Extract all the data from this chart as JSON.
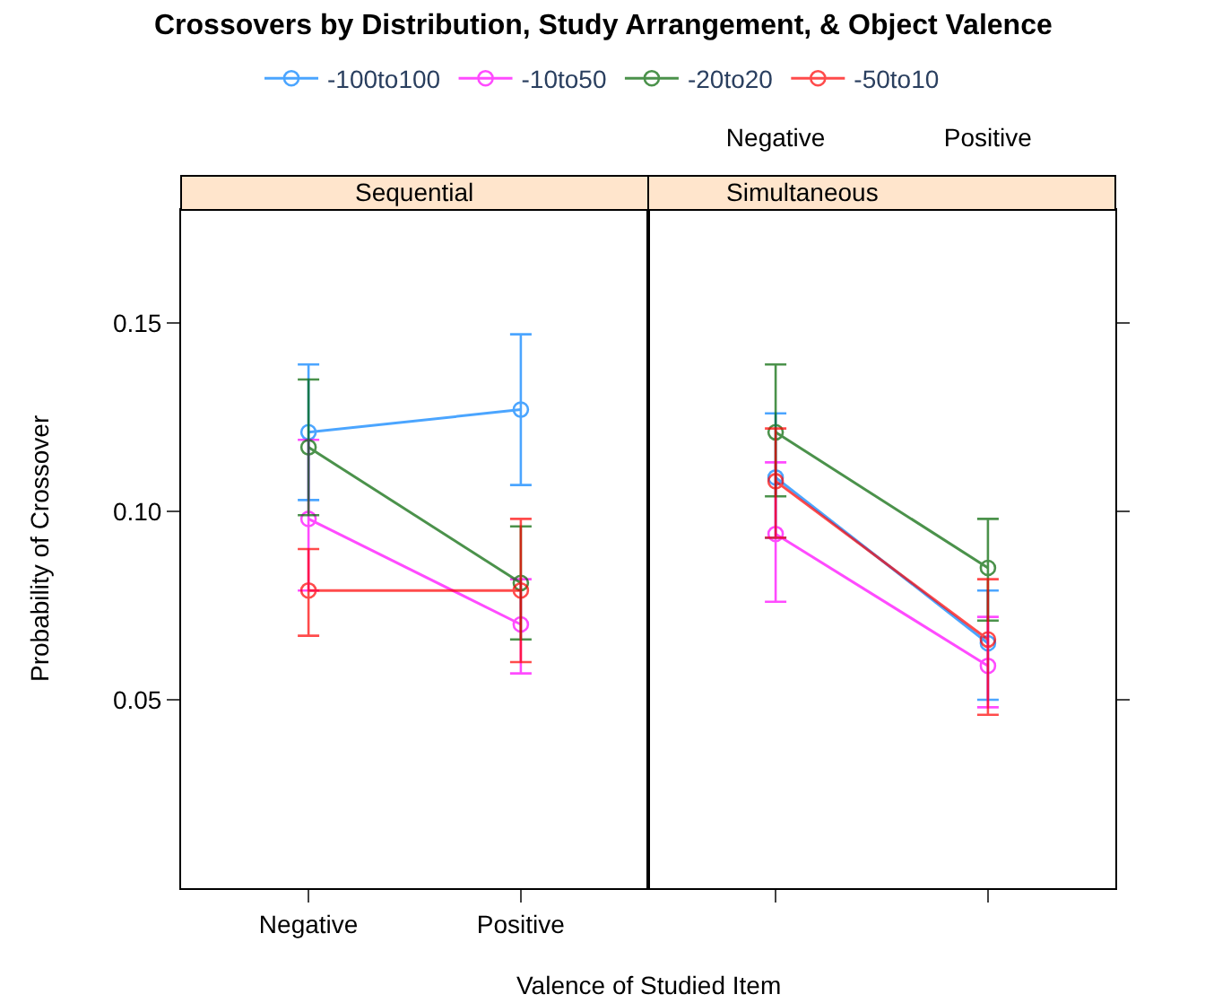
{
  "chart_data": [
    {
      "type": "line",
      "title": "Crossovers by Distribution, Study Arrangement, & Object Valence",
      "subtitle": "Sequential",
      "xlabel": "Valence of Studied Item",
      "ylabel": "Probability of Crossover",
      "categories": [
        "Negative",
        "Positive"
      ],
      "ylim": [
        0.0,
        0.18
      ],
      "yticks": [
        {
          "value": 0.05,
          "label": "0.05"
        },
        {
          "value": 0.1,
          "label": "0.10"
        },
        {
          "value": 0.15,
          "label": "0.15"
        }
      ],
      "marker": "circle",
      "legend": "top",
      "grid": false,
      "series": [
        {
          "name": "-100to100",
          "color": "#0080ff",
          "values": [
            0.121,
            0.127
          ],
          "errors": [
            [
              0.103,
              0.139
            ],
            [
              0.107,
              0.147
            ]
          ]
        },
        {
          "name": "-10to50",
          "color": "#ff00ff",
          "values": [
            0.098,
            0.07
          ],
          "errors": [
            [
              0.079,
              0.119
            ],
            [
              0.057,
              0.082
            ]
          ]
        },
        {
          "name": "-20to20",
          "color": "#006400",
          "values": [
            0.117,
            0.081
          ],
          "errors": [
            [
              0.099,
              0.135
            ],
            [
              0.066,
              0.096
            ]
          ]
        },
        {
          "name": "-50to10",
          "color": "#ff0000",
          "values": [
            0.079,
            0.079
          ],
          "errors": [
            [
              0.067,
              0.09
            ],
            [
              0.06,
              0.098
            ]
          ]
        }
      ]
    },
    {
      "type": "line",
      "subtitle": "Simultaneous",
      "categories": [
        "Negative",
        "Positive"
      ],
      "ylim": [
        0.0,
        0.18
      ],
      "yticks": [
        0.05,
        0.1,
        0.15
      ],
      "marker": "circle",
      "tick_labels": "x",
      "grid": false,
      "series": [
        {
          "color": "#0080ff",
          "values": [
            0.109,
            0.065
          ],
          "errors": [
            [
              0.093,
              0.126
            ],
            [
              0.05,
              0.079
            ]
          ]
        },
        {
          "color": "#ff00ff",
          "values": [
            0.094,
            0.059
          ],
          "errors": [
            [
              0.076,
              0.113
            ],
            [
              0.048,
              0.072
            ]
          ]
        },
        {
          "color": "#006400",
          "values": [
            0.121,
            0.085
          ],
          "errors": [
            [
              0.104,
              0.139
            ],
            [
              0.071,
              0.098
            ]
          ]
        },
        {
          "color": "#ff0000",
          "values": [
            0.108,
            0.066
          ],
          "errors": [
            [
              0.093,
              0.122
            ],
            [
              0.046,
              0.082
            ]
          ]
        }
      ]
    }
  ]
}
